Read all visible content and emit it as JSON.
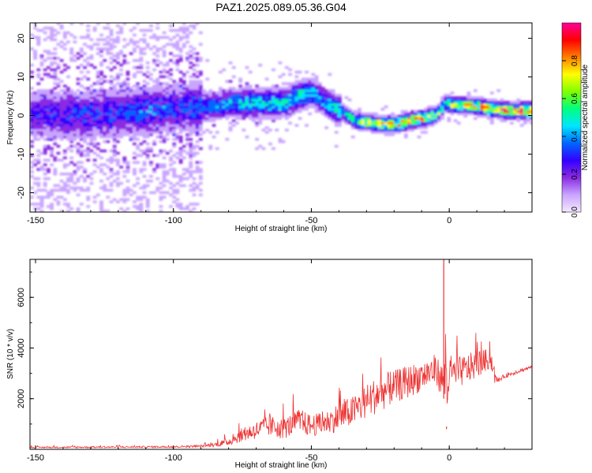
{
  "title": "PAZ1.2025.089.05.36.G04",
  "chart_data": [
    {
      "type": "heatmap",
      "xlabel": "Height of straight line (km)",
      "ylabel": "Frequency (Hz)",
      "xlim": [
        -152,
        30
      ],
      "ylim": [
        -25,
        24
      ],
      "x_ticks": [
        -150,
        -100,
        -50,
        0
      ],
      "y_ticks": [
        20,
        10,
        0,
        -10,
        -20
      ],
      "colorbar": {
        "label": "Normalized spectral amplitude",
        "range": [
          0.0,
          1.0
        ],
        "ticks": [
          "0.0",
          "0.2",
          "0.4",
          "0.6",
          "0.8"
        ],
        "colors": [
          "#f4e8ff",
          "#c9a5ff",
          "#8a2be2",
          "#3300ff",
          "#0066ff",
          "#00e5ff",
          "#00ff80",
          "#80ff00",
          "#ffff00",
          "#ff8000",
          "#ff0000",
          "#ff0099"
        ]
      },
      "ridge": {
        "height_km": [
          -150,
          -140,
          -130,
          -120,
          -110,
          -100,
          -90,
          -80,
          -70,
          -60,
          -55,
          -50,
          -45,
          -40,
          -35,
          -30,
          -25,
          -20,
          -15,
          -10,
          -5,
          -2,
          0,
          5,
          10,
          15,
          20,
          25,
          30
        ],
        "frequency_hz": [
          0,
          0,
          0,
          0.5,
          1,
          1.5,
          2,
          3,
          3,
          3,
          5,
          5.5,
          3,
          1,
          -1.5,
          -2,
          -2.5,
          -2.5,
          -1.5,
          -1,
          0,
          3,
          2.5,
          2.5,
          2,
          1.5,
          1,
          1,
          1
        ],
        "peak_amplitude": [
          0.3,
          0.3,
          0.35,
          0.35,
          0.4,
          0.35,
          0.4,
          0.45,
          0.5,
          0.5,
          0.55,
          0.45,
          0.45,
          0.55,
          0.65,
          0.75,
          0.8,
          0.85,
          0.85,
          0.85,
          0.7,
          0.6,
          0.75,
          0.8,
          0.85,
          0.9,
          0.95,
          0.95,
          0.95
        ]
      }
    },
    {
      "type": "line",
      "xlabel": "Height of straight line (km)",
      "ylabel": "SNR (10 * v/v)",
      "xlim": [
        -152,
        30
      ],
      "ylim": [
        0,
        7500
      ],
      "x_ticks": [
        -150,
        -100,
        -50,
        0
      ],
      "y_ticks": [
        2000,
        4000,
        6000
      ],
      "line_color": "#ee3333",
      "envelope": {
        "x": [
          -150,
          -100,
          -90,
          -85,
          -80,
          -75,
          -70,
          -65,
          -60,
          -55,
          -50,
          -45,
          -40,
          -35,
          -30,
          -25,
          -20,
          -15,
          -10,
          -5,
          -2,
          -1,
          0,
          5,
          10,
          15,
          16,
          17,
          20,
          25,
          30
        ],
        "low": [
          50,
          60,
          80,
          100,
          150,
          300,
          400,
          500,
          400,
          600,
          500,
          600,
          700,
          900,
          1200,
          1500,
          1800,
          2000,
          2300,
          2500,
          2000,
          900,
          2200,
          2500,
          2800,
          3200,
          2600,
          2600,
          2800,
          3000,
          3200
        ],
        "high": [
          150,
          200,
          250,
          400,
          700,
          1300,
          1700,
          2000,
          1900,
          2400,
          2100,
          2200,
          2800,
          3100,
          3700,
          4200,
          4200,
          4400,
          4500,
          4800,
          4300,
          7500,
          4600,
          4700,
          4800,
          4600,
          4600,
          2900,
          3100,
          3300,
          3400
        ]
      },
      "notable_points": [
        {
          "x": -2,
          "y": 7500,
          "label": "spike"
        },
        {
          "x": -1,
          "y": 800,
          "label": "dip"
        }
      ]
    }
  ]
}
